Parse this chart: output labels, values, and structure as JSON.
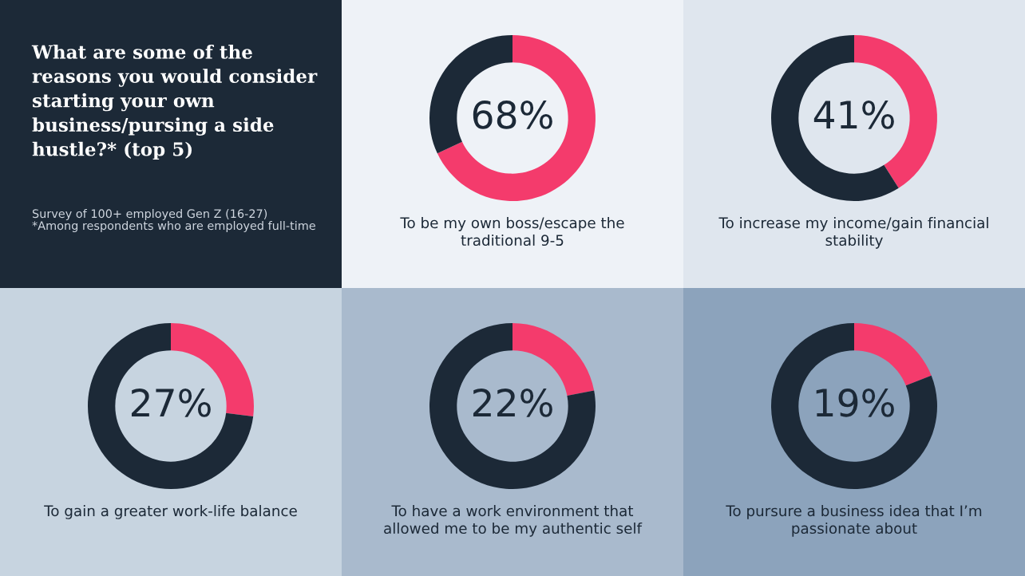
{
  "chart_data": [
    {
      "type": "other",
      "title": "What are some of the reasons you would consider starting your own business/pursing a side hustle?* (top 5)",
      "annotations": [
        "Survey of 100+ employed Gen Z (16-27)",
        "*Among respondents who are employed full-time"
      ]
    },
    {
      "type": "donut",
      "title": "To be my own boss/escape the traditional 9-5",
      "categories": [
        null,
        null
      ],
      "values": [
        68,
        32
      ],
      "colors": [
        "#f43b6c",
        "#1c2937"
      ],
      "value_labels": [
        "68%",
        null
      ]
    },
    {
      "type": "donut",
      "title": "To increase my income/gain financial stability",
      "categories": [
        null,
        null
      ],
      "values": [
        41,
        59
      ],
      "colors": [
        "#f43b6c",
        "#1c2937"
      ],
      "value_labels": [
        "41%",
        null
      ]
    },
    {
      "type": "donut",
      "title": "To gain a greater work-life balance",
      "categories": [
        null,
        null
      ],
      "values": [
        27,
        73
      ],
      "colors": [
        "#f43b6c",
        "#1c2937"
      ],
      "value_labels": [
        "27%",
        null
      ]
    },
    {
      "type": "donut",
      "title": "To have a work environment that allowed me to be my authentic self",
      "categories": [
        null,
        null
      ],
      "values": [
        22,
        78
      ],
      "colors": [
        "#f43b6c",
        "#1c2937"
      ],
      "value_labels": [
        "22%",
        null
      ]
    },
    {
      "type": "donut",
      "title": "To pursure a business idea that I’m passionate about",
      "categories": [
        null,
        null
      ],
      "values": [
        19,
        81
      ],
      "colors": [
        "#f43b6c",
        "#1c2937"
      ],
      "value_labels": [
        "19%",
        null
      ]
    }
  ]
}
